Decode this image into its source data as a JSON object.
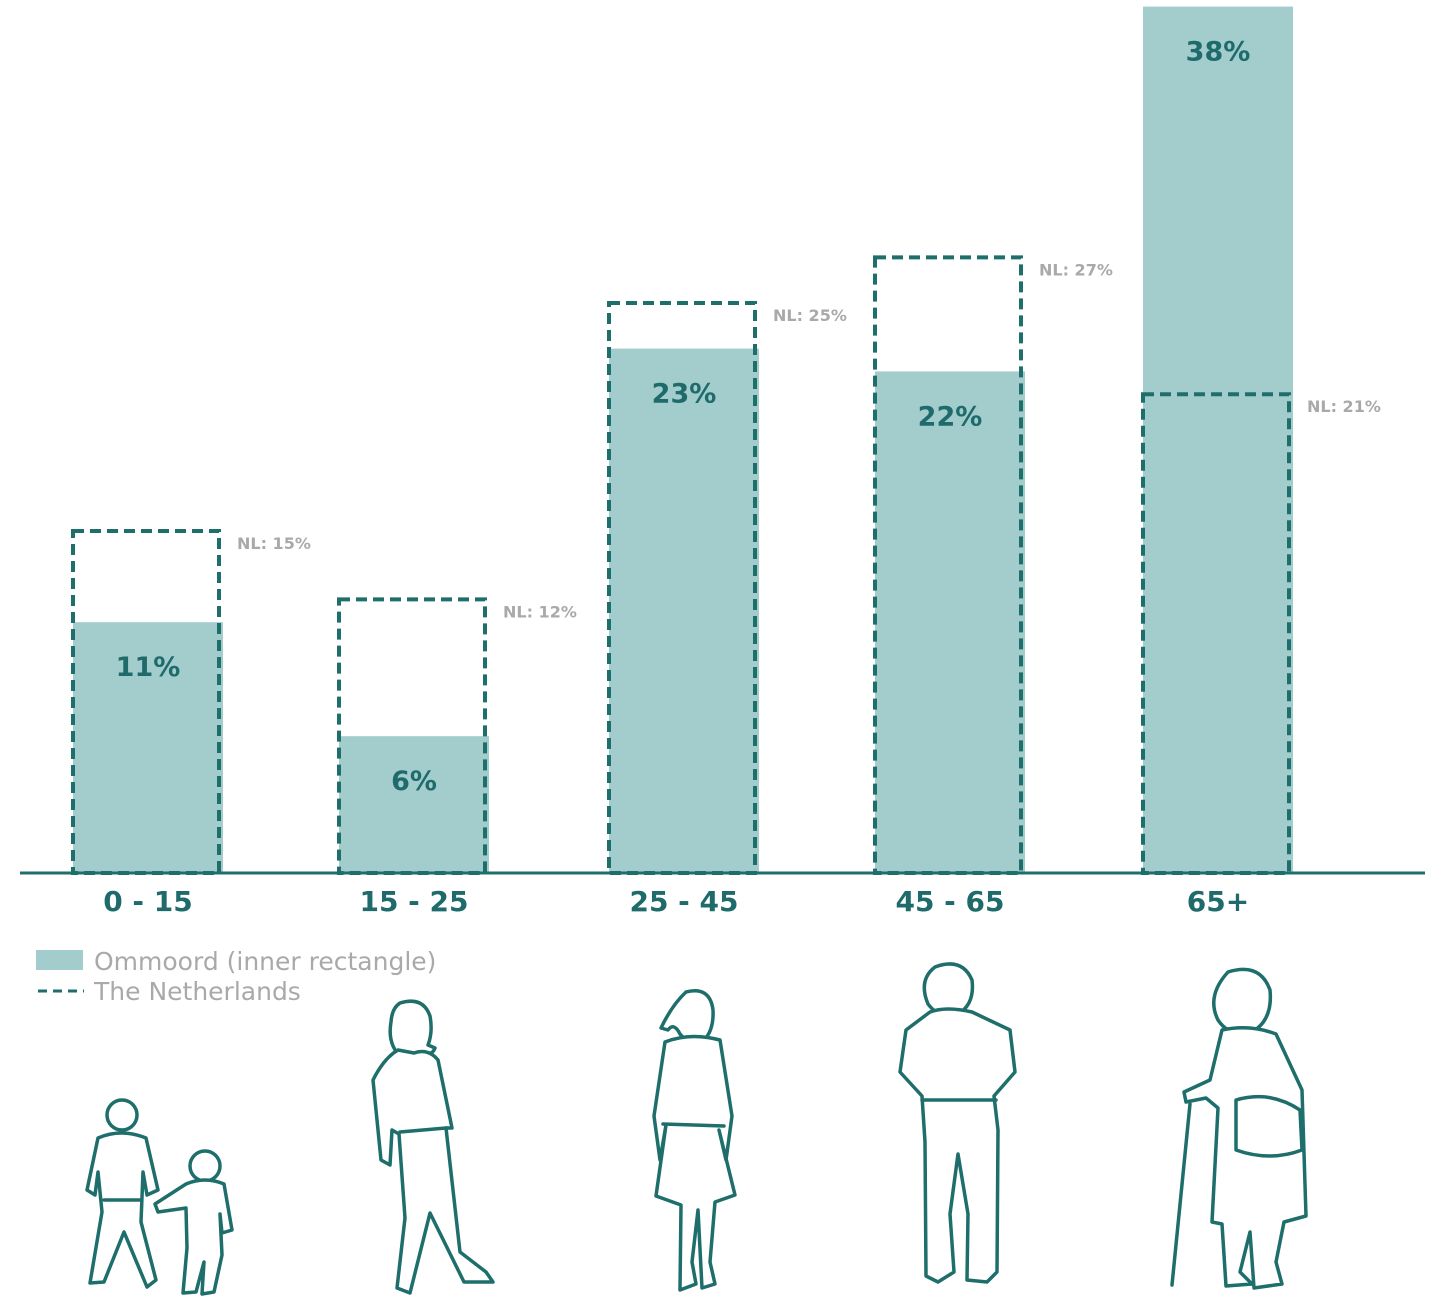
{
  "chart_data": {
    "type": "bar",
    "categories": [
      "0 - 15",
      "15 - 25",
      "25 - 45",
      "45 - 65",
      "65+"
    ],
    "series": [
      {
        "name": "Ommoord (inner rectangle)",
        "values": [
          11,
          6,
          23,
          22,
          38
        ],
        "labels": [
          "11%",
          "6%",
          "23%",
          "22%",
          "38%"
        ]
      },
      {
        "name": "The Netherlands",
        "values": [
          15,
          12,
          25,
          27,
          21
        ],
        "labels": [
          "NL: 15%",
          "NL: 12%",
          "NL: 25%",
          "NL: 27%",
          "NL: 21%"
        ]
      }
    ],
    "ylim": [
      0,
      38
    ],
    "grid": false,
    "legend_position": "bottom-left",
    "colors": {
      "ommoord_fill": "#a3cccd",
      "netherlands_stroke": "#1e6e6c",
      "axis": "#1e6e6c",
      "value_label": "#1f6b6b",
      "nl_label": "#a9a9a9",
      "category_label": "#1f6b6b"
    },
    "illustrations": [
      "children-icon",
      "young-adult-icon",
      "woman-icon",
      "middle-aged-man-icon",
      "elderly-woman-icon"
    ]
  }
}
